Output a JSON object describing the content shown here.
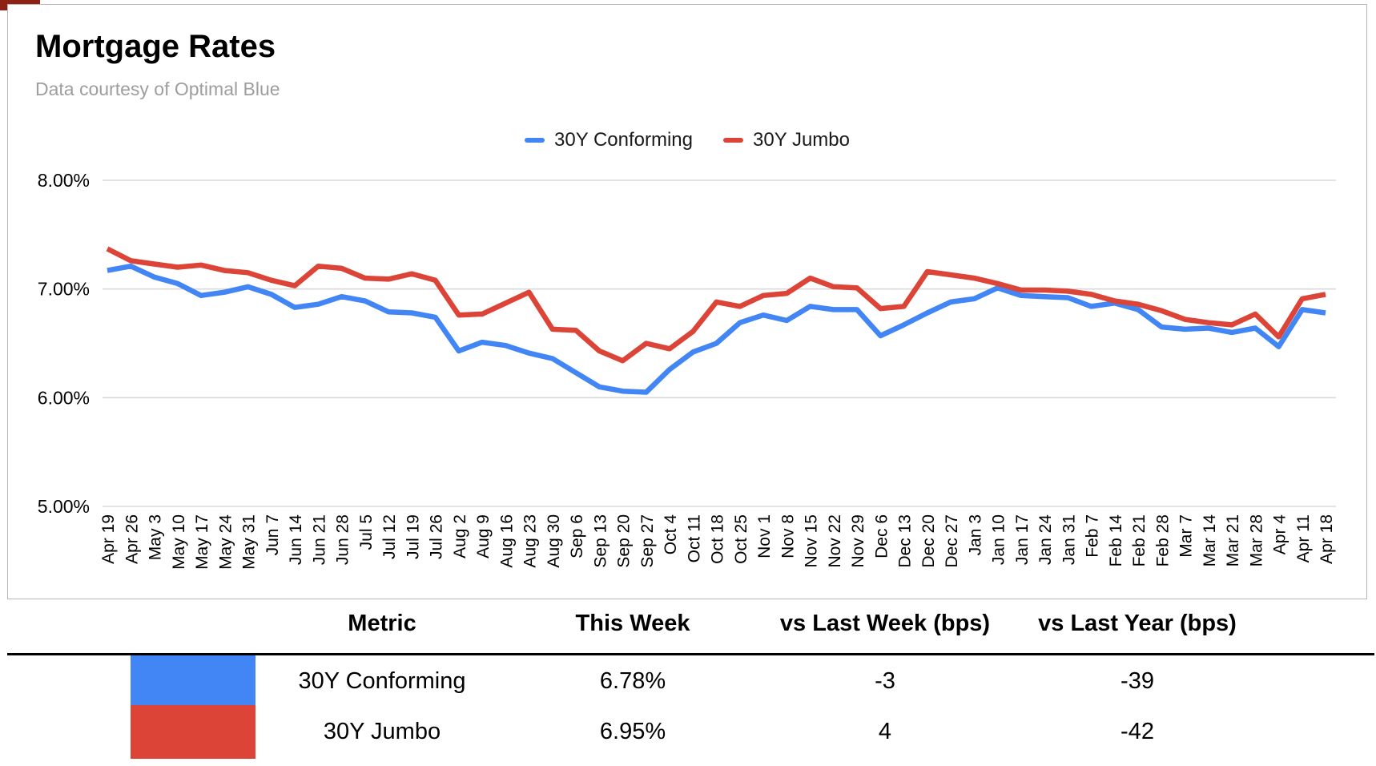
{
  "header": {
    "title": "Mortgage Rates",
    "subtitle": "Data courtesy of Optimal Blue"
  },
  "chart_data": {
    "type": "line",
    "title": "Mortgage Rates",
    "xlabel": "",
    "ylabel": "",
    "grid": true,
    "legend_position": "top",
    "ylim": [
      5.0,
      8.0
    ],
    "yticks": [
      {
        "value": 8.0,
        "label": "8.00%"
      },
      {
        "value": 7.0,
        "label": "7.00%"
      },
      {
        "value": 6.0,
        "label": "6.00%"
      },
      {
        "value": 5.0,
        "label": "5.00%"
      }
    ],
    "x": [
      "Apr 19",
      "Apr 26",
      "May 3",
      "May 10",
      "May 17",
      "May 24",
      "May 31",
      "Jun 7",
      "Jun 14",
      "Jun 21",
      "Jun 28",
      "Jul 5",
      "Jul 12",
      "Jul 19",
      "Jul 26",
      "Aug 2",
      "Aug 9",
      "Aug 16",
      "Aug 23",
      "Aug 30",
      "Sep 6",
      "Sep 13",
      "Sep 20",
      "Sep 27",
      "Oct 4",
      "Oct 11",
      "Oct 18",
      "Oct 25",
      "Nov 1",
      "Nov 8",
      "Nov 15",
      "Nov 22",
      "Nov 29",
      "Dec 6",
      "Dec 13",
      "Dec 20",
      "Dec 27",
      "Jan 3",
      "Jan 10",
      "Jan 17",
      "Jan 24",
      "Jan 31",
      "Feb 7",
      "Feb 14",
      "Feb 21",
      "Feb 28",
      "Mar 7",
      "Mar 14",
      "Mar 21",
      "Mar 28",
      "Apr 4",
      "Apr 11",
      "Apr 18"
    ],
    "series": [
      {
        "name": "30Y Conforming",
        "color": "#4285F4",
        "values": [
          7.17,
          7.21,
          7.11,
          7.05,
          6.94,
          6.97,
          7.02,
          6.95,
          6.83,
          6.86,
          6.93,
          6.89,
          6.79,
          6.78,
          6.74,
          6.43,
          6.51,
          6.48,
          6.41,
          6.36,
          6.23,
          6.1,
          6.06,
          6.05,
          6.26,
          6.42,
          6.5,
          6.69,
          6.76,
          6.71,
          6.84,
          6.81,
          6.81,
          6.57,
          6.67,
          6.78,
          6.88,
          6.91,
          7.01,
          6.94,
          6.93,
          6.92,
          6.84,
          6.87,
          6.81,
          6.65,
          6.63,
          6.64,
          6.6,
          6.64,
          6.47,
          6.81,
          6.78
        ]
      },
      {
        "name": "30Y Jumbo",
        "color": "#DB4437",
        "values": [
          7.37,
          7.26,
          7.23,
          7.2,
          7.22,
          7.17,
          7.15,
          7.08,
          7.03,
          7.21,
          7.19,
          7.1,
          7.09,
          7.14,
          7.08,
          6.76,
          6.77,
          6.87,
          6.97,
          6.63,
          6.62,
          6.43,
          6.34,
          6.5,
          6.45,
          6.61,
          6.88,
          6.84,
          6.94,
          6.96,
          7.1,
          7.02,
          7.01,
          6.82,
          6.84,
          7.16,
          7.13,
          7.1,
          7.05,
          6.99,
          6.99,
          6.98,
          6.95,
          6.89,
          6.86,
          6.8,
          6.72,
          6.69,
          6.67,
          6.77,
          6.56,
          6.91,
          6.95
        ]
      }
    ]
  },
  "table": {
    "headers": [
      "Metric",
      "This Week",
      "vs Last Week (bps)",
      "vs Last Year (bps)"
    ],
    "rows": [
      {
        "swatch_color": "#4285F4",
        "metric": "30Y Conforming",
        "this_week": "6.78%",
        "vs_last_week": "-3",
        "vs_last_year": "-39"
      },
      {
        "swatch_color": "#DB4437",
        "metric": "30Y Jumbo",
        "this_week": "6.95%",
        "vs_last_week": "4",
        "vs_last_year": "-42"
      }
    ]
  },
  "colors": {
    "conforming_blue": "#4285F4",
    "jumbo_red": "#DB4437",
    "gridline": "#d9d9d9",
    "chart_border": "#b7b7b7",
    "subtitle_gray": "#9e9e9e"
  }
}
